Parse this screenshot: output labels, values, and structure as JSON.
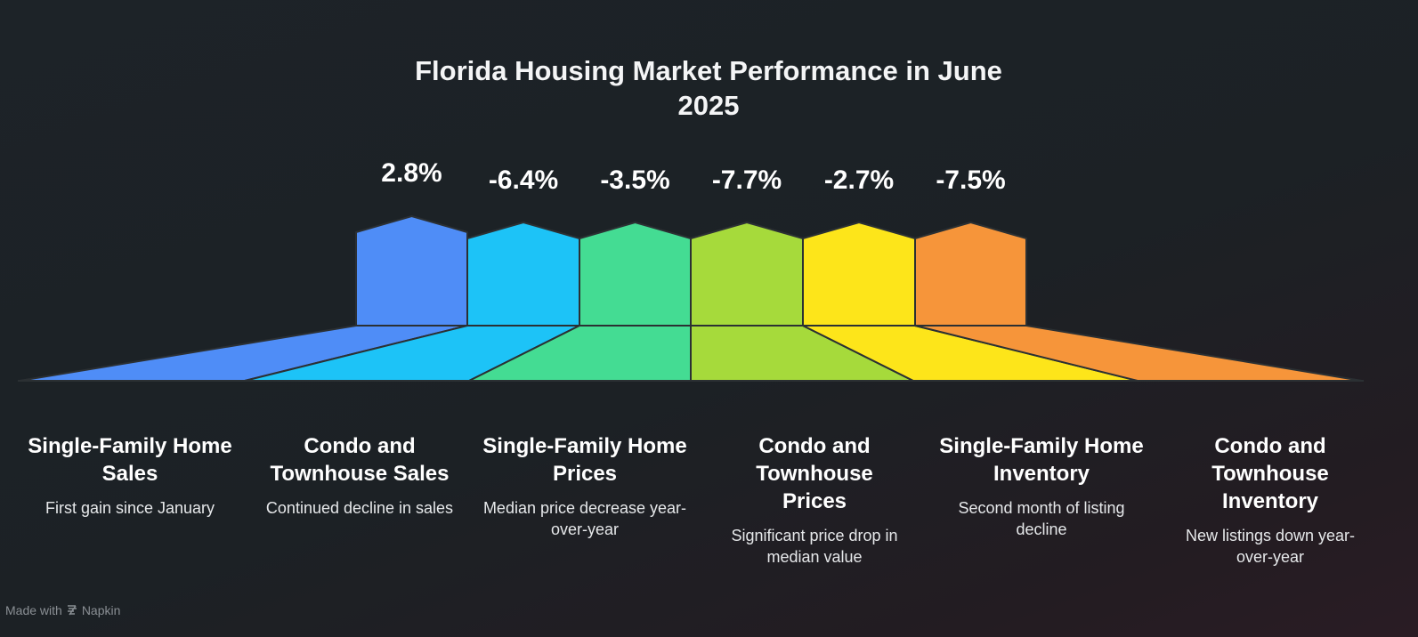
{
  "title": {
    "line1": "Florida Housing Market Performance in June",
    "line2": "2025"
  },
  "segments": [
    {
      "value": "2.8%",
      "heading": "Single-Family Home Sales",
      "description": "First gain since January",
      "color": "#4f8df7"
    },
    {
      "value": "-6.4%",
      "heading": "Condo and Townhouse Sales",
      "description": "Continued decline in sales",
      "color": "#1dc3f7"
    },
    {
      "value": "-3.5%",
      "heading": "Single-Family Home Prices",
      "description": "Median price decrease year-over-year",
      "color": "#44dc93"
    },
    {
      "value": "-7.7%",
      "heading": "Condo and Townhouse Prices",
      "description": "Significant price drop in median value",
      "color": "#a6da3b"
    },
    {
      "value": "-2.7%",
      "heading": "Single-Family Home Inventory",
      "description": "Second month of listing decline",
      "color": "#fde51a"
    },
    {
      "value": "-7.5%",
      "heading": "Condo and Townhouse Inventory",
      "description": "New listings down year-over-year",
      "color": "#f6953a"
    }
  ],
  "credit": {
    "text": "Made with",
    "brand": "Napkin",
    "icon": "napkin-logo-icon"
  }
}
